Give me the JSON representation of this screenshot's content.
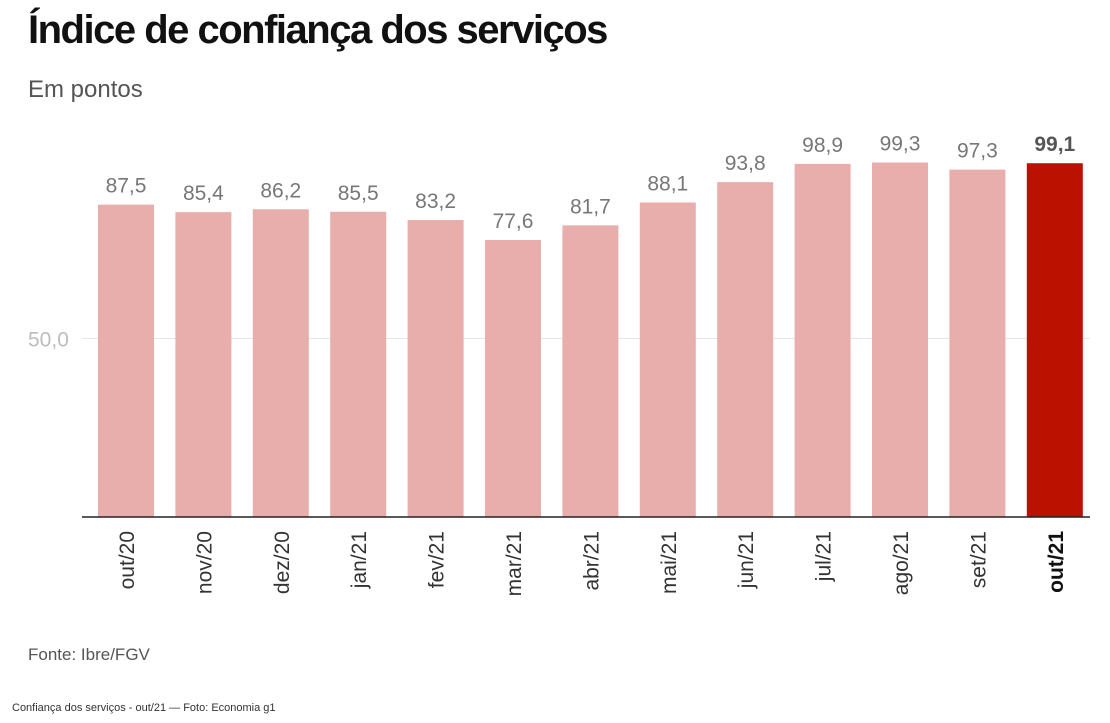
{
  "chart_data": {
    "type": "bar",
    "title": "Índice de confiança dos serviços",
    "subtitle": "Em pontos",
    "categories": [
      "out/20",
      "nov/20",
      "dez/20",
      "jan/21",
      "fev/21",
      "mar/21",
      "abr/21",
      "mai/21",
      "jun/21",
      "jul/21",
      "ago/21",
      "set/21",
      "out/21"
    ],
    "values": [
      87.5,
      85.4,
      86.2,
      85.5,
      83.2,
      77.6,
      81.7,
      88.1,
      93.8,
      98.9,
      99.3,
      97.3,
      99.1
    ],
    "value_labels": [
      "87,5",
      "85,4",
      "86,2",
      "85,5",
      "83,2",
      "77,6",
      "81,7",
      "88,1",
      "93,8",
      "98,9",
      "99,3",
      "97,3",
      "99,1"
    ],
    "highlight_index": 12,
    "yticks": [
      {
        "value": 50,
        "label": "50,0"
      }
    ],
    "ylim": [
      0,
      100
    ],
    "grid": true,
    "legend": "none",
    "colors": {
      "bar": "#e8aeac",
      "highlight": "#bb1100",
      "label": "#777777",
      "highlight_label": "#555555"
    }
  },
  "source": "Fonte: Ibre/FGV",
  "caption": "Confiança dos serviços - out/21 — Foto: Economia g1"
}
